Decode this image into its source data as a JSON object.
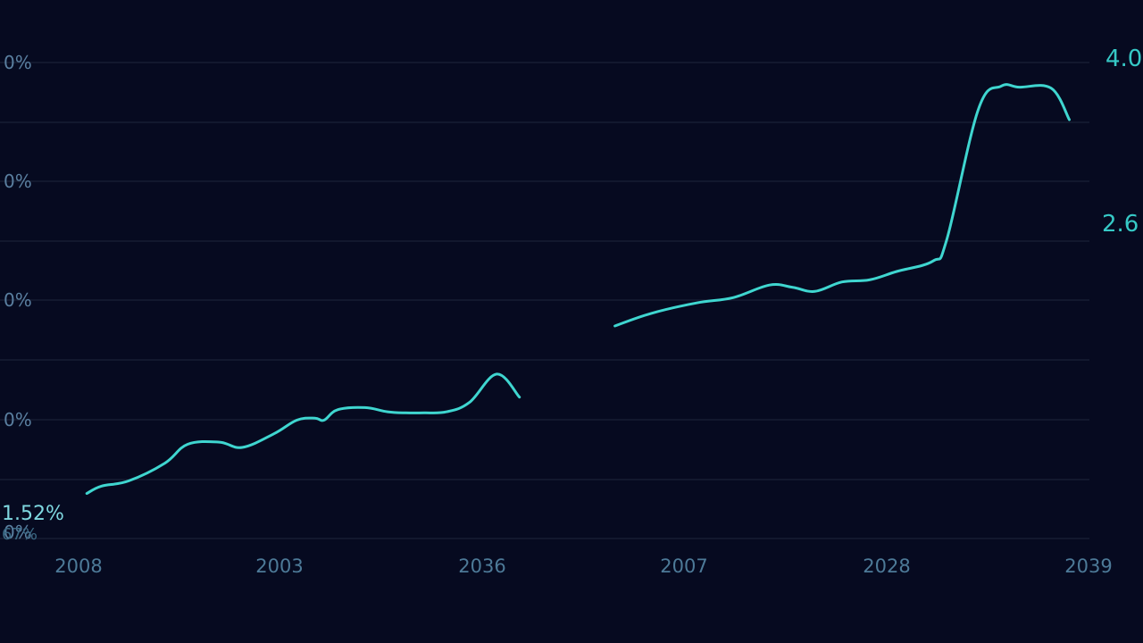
{
  "chart_data": {
    "type": "line",
    "title": "",
    "xlabel": "",
    "ylabel": "",
    "x_tick_labels": [
      "2008",
      "2003",
      "2036",
      "2007",
      "2028",
      "2039"
    ],
    "y_tick_labels": [
      "0%",
      "0%",
      "0%",
      "0%",
      "0%"
    ],
    "grid": true,
    "legend": "none",
    "xlim": [
      0,
      10
    ],
    "ylim": [
      0,
      4.0
    ],
    "series": [
      {
        "segments": [
          {
            "x": [
              0.09,
              0.25,
              0.55,
              0.95,
              1.2,
              1.55,
              1.8,
              2.15,
              2.4,
              2.6,
              2.7,
              2.85,
              3.15,
              3.4,
              3.6,
              3.8,
              4.05,
              4.3,
              4.6,
              4.85
            ],
            "y": [
              0.43,
              0.5,
              0.55,
              0.72,
              0.9,
              0.92,
              0.87,
              1.0,
              1.13,
              1.15,
              1.13,
              1.23,
              1.25,
              1.21,
              1.2,
              1.2,
              1.21,
              1.3,
              1.57,
              1.35
            ]
          },
          {
            "x": [
              5.9,
              6.3,
              6.8,
              7.2,
              7.6,
              7.85,
              8.1,
              8.4,
              8.7,
              9.0,
              9.4,
              9.55,
              9.9,
              10.15,
              10.35,
              10.7,
              10.9
            ],
            "y": [
              2.03,
              2.15,
              2.25,
              2.3,
              2.42,
              2.4,
              2.36,
              2.45,
              2.47,
              2.55,
              2.65,
              2.85,
              4.1,
              4.32,
              4.31,
              4.3,
              4.0
            ]
          }
        ]
      }
    ],
    "annotations": {
      "start_value": "1.52%",
      "start_sub": "67%",
      "mid_value": "2.6",
      "end_value": "4.0"
    }
  },
  "colors": {
    "background": "#060a20",
    "grid": "#1a2036",
    "line": "#3fd6d0",
    "tick": "#5a7fa0",
    "callout": "#36c9c6"
  }
}
